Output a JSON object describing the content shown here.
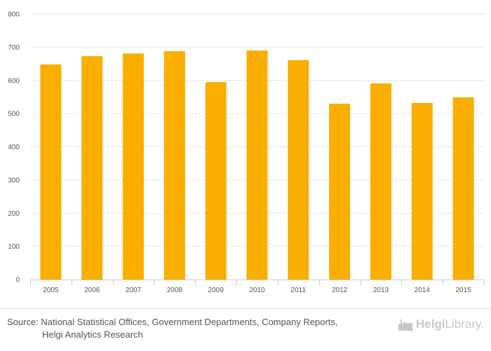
{
  "chart_data": {
    "type": "bar",
    "categories": [
      "2005",
      "2006",
      "2007",
      "2008",
      "2009",
      "2010",
      "2011",
      "2012",
      "2013",
      "2014",
      "2015"
    ],
    "values": [
      648,
      673,
      681,
      688,
      595,
      690,
      661,
      530,
      591,
      532,
      549
    ],
    "ylim": [
      0,
      800
    ],
    "yticks": [
      0,
      100,
      200,
      300,
      400,
      500,
      600,
      700,
      800
    ],
    "title": "",
    "xlabel": "",
    "ylabel": "",
    "grid": true,
    "bar_color": "#f9ae00"
  },
  "footer": {
    "source_line1": "Source: National Statistical Offices, Government Departments, Company Reports,",
    "source_line2": "Helgi Analytics Research",
    "brand_name_bold": "Helgi",
    "brand_name_rest": "Library."
  }
}
